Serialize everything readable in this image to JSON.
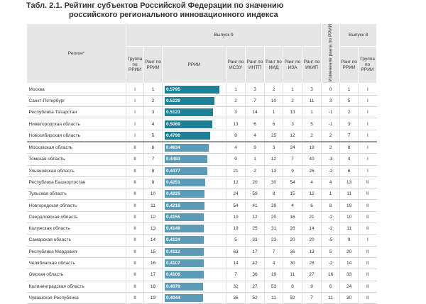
{
  "title": "Табл. 2.1. Рейтинг субъектов Российской Федерации по значению",
  "title2": "российского регионального инновационного индекса",
  "table": {
    "header": {
      "region": "Регион*",
      "issue9": "Выпуск 9",
      "change": "Изменение ранга по РРИИ",
      "issue8": "Выпуск 8",
      "sub9": [
        "Группа по РРИИ",
        "Ранг по РРИИ",
        "РРИИ",
        "Ранг по ИСЭУ",
        "Ранг по ИНТП",
        "Ранг по ИИД",
        "Ранг по ИЗА",
        "Ранг по ИКИП"
      ],
      "sub8": [
        "Ранг по РРИИ",
        "Группа по РРИИ"
      ]
    },
    "rows": [
      [
        "Москва",
        "I",
        1,
        "0.5795",
        1,
        3,
        2,
        1,
        3,
        0,
        1,
        "I"
      ],
      [
        "Санкт-Петербург",
        "I",
        2,
        "0.5229",
        2,
        7,
        10,
        2,
        11,
        3,
        5,
        "I"
      ],
      [
        "Республика Татарстан",
        "I",
        3,
        "0.5123",
        3,
        14,
        1,
        13,
        1,
        -1,
        2,
        "I"
      ],
      [
        "Нижегородская область",
        "I",
        4,
        "0.5069",
        13,
        6,
        6,
        3,
        5,
        -1,
        3,
        "I"
      ],
      [
        "Новосибирская область",
        "I",
        5,
        "0.4790",
        8,
        4,
        25,
        12,
        2,
        2,
        7,
        "I"
      ],
      [
        "Московская область",
        "II",
        6,
        "0.4634",
        4,
        9,
        3,
        24,
        19,
        2,
        8,
        "I"
      ],
      [
        "Томская область",
        "II",
        7,
        "0.4483",
        9,
        1,
        12,
        7,
        40,
        -3,
        4,
        "I"
      ],
      [
        "Ульяновская область",
        "II",
        8,
        "0.4477",
        21,
        2,
        13,
        9,
        26,
        -2,
        6,
        "I"
      ],
      [
        "Республика Башкортостан",
        "II",
        9,
        "0.4251",
        12,
        20,
        30,
        54,
        4,
        4,
        13,
        "II"
      ],
      [
        "Тульская область",
        "II",
        10,
        "0.4225",
        24,
        59,
        8,
        15,
        12,
        1,
        11,
        "II"
      ],
      [
        "Новгородская область",
        "II",
        11,
        "0.4218",
        54,
        41,
        39,
        4,
        6,
        8,
        19,
        "II"
      ],
      [
        "Свердловская область",
        "II",
        12,
        "0.4155",
        10,
        12,
        20,
        16,
        21,
        -2,
        10,
        "II"
      ],
      [
        "Калужская область",
        "II",
        13,
        "0.4149",
        19,
        25,
        31,
        26,
        14,
        -2,
        11,
        "II"
      ],
      [
        "Самарская область",
        "II",
        14,
        "0.4124",
        5,
        33,
        23,
        20,
        20,
        -5,
        9,
        "I"
      ],
      [
        "Республика Мордовия",
        "II",
        15,
        "0.4112",
        63,
        17,
        7,
        36,
        13,
        5,
        20,
        "II"
      ],
      [
        "Челябинская область",
        "II",
        16,
        "0.4107",
        14,
        42,
        4,
        30,
        28,
        -2,
        14,
        "II"
      ],
      [
        "Омская область",
        "II",
        17,
        "0.4106",
        7,
        36,
        19,
        11,
        27,
        16,
        33,
        "II"
      ],
      [
        "Калининградская область",
        "II",
        18,
        "0.4079",
        32,
        27,
        53,
        8,
        9,
        6,
        24,
        "II"
      ],
      [
        "Чувашская Республика",
        "II",
        19,
        "0.4044",
        36,
        52,
        11,
        52,
        7,
        11,
        30,
        "II"
      ]
    ]
  }
}
